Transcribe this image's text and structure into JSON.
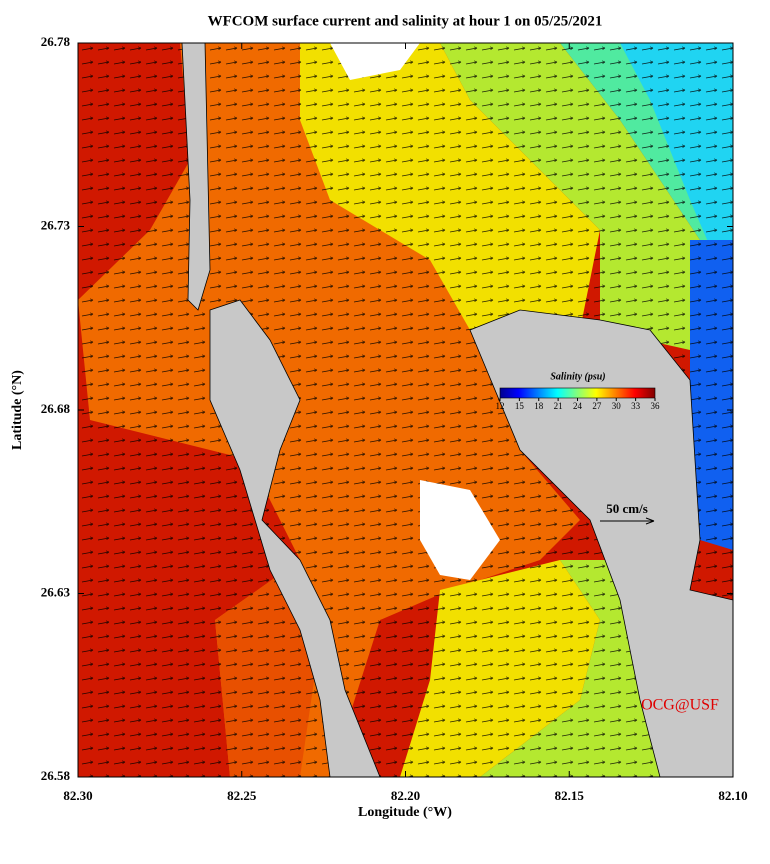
{
  "chart_data": {
    "type": "map",
    "title": "WFCOM surface current and salinity at hour 1 on 05/25/2021",
    "x_label": "Longitude (°W)",
    "y_label": "Latitude (°N)",
    "xlim": [
      82.3,
      82.1
    ],
    "xticks": [
      {
        "value": 82.3,
        "label": "82.30"
      },
      82.25,
      {
        "value": 82.2,
        "label": "82.20"
      },
      82.15,
      {
        "value": 82.1,
        "label": "82.10"
      }
    ],
    "ylim": [
      26.58,
      26.78
    ],
    "yticks": [
      26.58,
      26.63,
      26.68,
      26.73,
      26.78
    ],
    "colorbar": {
      "label": "Salinity (psu)",
      "lim": [
        12,
        36
      ],
      "ticks": [
        12,
        15,
        18,
        21,
        24,
        27,
        30,
        33,
        36
      ]
    },
    "scale_label": "50 cm/s",
    "annotation": "OCG@USF"
  }
}
